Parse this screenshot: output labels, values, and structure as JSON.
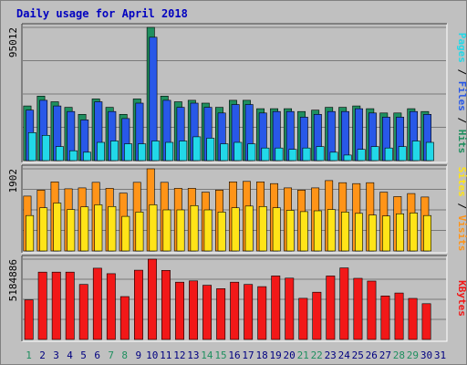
{
  "chart_data": {
    "type": "bar",
    "title": "Daily usage for April 2018",
    "days": [
      "1",
      "2",
      "3",
      "4",
      "5",
      "6",
      "7",
      "8",
      "9",
      "10",
      "11",
      "12",
      "13",
      "14",
      "15",
      "16",
      "17",
      "18",
      "19",
      "20",
      "21",
      "22",
      "23",
      "24",
      "25",
      "26",
      "27",
      "28",
      "29",
      "30",
      "31"
    ],
    "weekend_days": [
      "1",
      "7",
      "8",
      "14",
      "15",
      "21",
      "22",
      "28",
      "29"
    ],
    "panels": [
      {
        "name": "hits-files-pages",
        "max_label": "95012",
        "ymax": 95012,
        "legend": [
          "Pages",
          "Files",
          "Hits"
        ],
        "series": [
          {
            "name": "Hits",
            "color": "#1f8f5f",
            "values": [
              39000,
              46000,
              42000,
              38000,
              33000,
              44000,
              38000,
              33000,
              44000,
              95012,
              46000,
              42000,
              43000,
              41000,
              38000,
              43000,
              43000,
              37000,
              37000,
              37000,
              35000,
              36000,
              38000,
              38000,
              39000,
              37000,
              34000,
              34000,
              37000,
              35000,
              null
            ]
          },
          {
            "name": "Files",
            "color": "#2858e8",
            "values": [
              36000,
              43000,
              39000,
              35000,
              29000,
              42000,
              35000,
              30000,
              41000,
              88000,
              43000,
              38000,
              41000,
              38000,
              34000,
              40000,
              40000,
              34000,
              35000,
              35000,
              31000,
              33000,
              35000,
              35000,
              37000,
              34000,
              31000,
              31000,
              35000,
              33000,
              null
            ]
          },
          {
            "name": "Pages",
            "color": "#22d8e8",
            "values": [
              20000,
              18000,
              10000,
              7000,
              6000,
              13000,
              14000,
              12000,
              12000,
              14000,
              13000,
              14000,
              17000,
              16000,
              12000,
              13000,
              12000,
              9000,
              9000,
              8000,
              9000,
              10000,
              6000,
              4000,
              8000,
              10000,
              9000,
              10000,
              14000,
              13000,
              null
            ]
          }
        ]
      },
      {
        "name": "visits-sites",
        "max_label": "1902",
        "ymax": 1902,
        "legend": [
          "Sites",
          "Visits"
        ],
        "series": [
          {
            "name": "Visits",
            "color": "#ff9418",
            "values": [
              1270,
              1410,
              1600,
              1440,
              1460,
              1590,
              1450,
              1340,
              1590,
              1902,
              1590,
              1450,
              1450,
              1360,
              1410,
              1600,
              1610,
              1600,
              1560,
              1460,
              1410,
              1460,
              1630,
              1580,
              1560,
              1580,
              1360,
              1260,
              1330,
              1250,
              null
            ]
          },
          {
            "name": "Sites",
            "color": "#ffe418",
            "values": [
              820,
              1000,
              1110,
              960,
              1020,
              1070,
              1030,
              800,
              900,
              1070,
              950,
              950,
              1050,
              950,
              900,
              1000,
              1040,
              1030,
              1000,
              940,
              910,
              930,
              960,
              900,
              870,
              830,
              810,
              860,
              880,
              820,
              null
            ]
          }
        ]
      },
      {
        "name": "kbytes",
        "max_label": "5184886",
        "ymax": 5184886,
        "legend": [
          "KBytes"
        ],
        "series": [
          {
            "name": "KBytes",
            "color": "#f21818",
            "values": [
              2560000,
              4350000,
              4350000,
              4350000,
              3550000,
              4600000,
              4250000,
              2770000,
              4470000,
              5184886,
              4460000,
              3700000,
              3780000,
              3500000,
              3280000,
              3700000,
              3550000,
              3410000,
              4100000,
              3960000,
              2660000,
              3050000,
              4100000,
              4620000,
              3950000,
              3770000,
              2810000,
              3000000,
              2650000,
              2310000,
              null
            ]
          }
        ]
      }
    ],
    "colors": {
      "background": "#c0c0c0",
      "frame": "#ffffff",
      "title": "#0000c0",
      "weekday_label": "#000080",
      "weekend_label": "#1f8f5f",
      "grid": "#7a7a7a"
    }
  }
}
